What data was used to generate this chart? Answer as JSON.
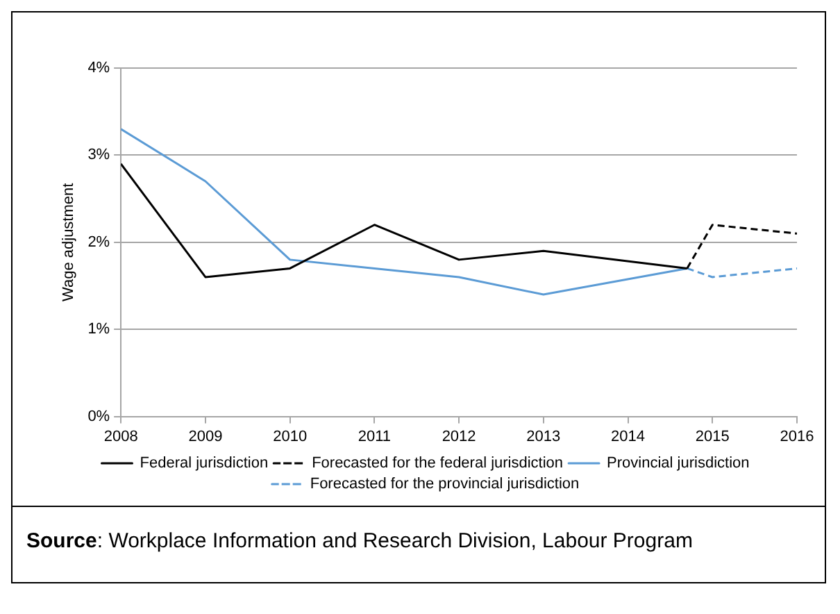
{
  "chart_data": {
    "type": "line",
    "ylabel": "Wage adjustment",
    "xlim": [
      2008,
      2016
    ],
    "xticks": [
      2008,
      2009,
      2010,
      2011,
      2012,
      2013,
      2014,
      2015,
      2016
    ],
    "ylim": [
      0,
      4
    ],
    "yticks": [
      {
        "value": 0,
        "label": "0%"
      },
      {
        "value": 1,
        "label": "1%"
      },
      {
        "value": 2,
        "label": "2%"
      },
      {
        "value": 3,
        "label": "3%"
      },
      {
        "value": 4,
        "label": "4%"
      }
    ],
    "grid": "y",
    "legend": "bottom",
    "marker": "none",
    "series": [
      {
        "name": "Federal jurisdiction",
        "color": "#000000",
        "line_style": "solid",
        "x": [
          2008,
          2009,
          2010,
          2011,
          2012,
          2013,
          2014.7
        ],
        "values": [
          2.9,
          1.6,
          1.7,
          2.2,
          1.8,
          1.9,
          1.7
        ]
      },
      {
        "name": "Forecasted for the federal jurisdiction",
        "color": "#000000",
        "line_style": "dashed",
        "x": [
          2014.7,
          2015,
          2016
        ],
        "values": [
          1.7,
          2.2,
          2.1
        ]
      },
      {
        "name": "Provincial jurisdiction",
        "color": "#5b9bd5",
        "line_style": "solid",
        "x": [
          2008,
          2009,
          2010,
          2011,
          2012,
          2013,
          2014.7
        ],
        "values": [
          3.3,
          2.7,
          1.8,
          1.7,
          1.6,
          1.4,
          1.7
        ]
      },
      {
        "name": "Forecasted for the provincial jurisdiction",
        "color": "#5b9bd5",
        "line_style": "dashed",
        "x": [
          2014.7,
          2015,
          2016
        ],
        "values": [
          1.7,
          1.6,
          1.7
        ]
      }
    ],
    "annotations": [
      "Source: Workplace Information and Research Division, Labour Program"
    ]
  }
}
